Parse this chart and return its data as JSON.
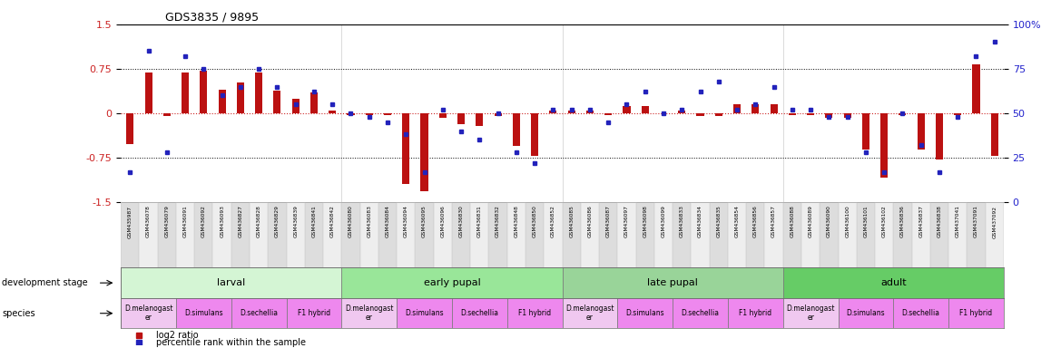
{
  "title": "GDS3835 / 9895",
  "samples": [
    "GSM435987",
    "GSM436078",
    "GSM436079",
    "GSM436091",
    "GSM436092",
    "GSM436093",
    "GSM436827",
    "GSM436828",
    "GSM436829",
    "GSM436839",
    "GSM436841",
    "GSM436842",
    "GSM436080",
    "GSM436083",
    "GSM436084",
    "GSM436094",
    "GSM436095",
    "GSM436096",
    "GSM436830",
    "GSM436831",
    "GSM436832",
    "GSM436848",
    "GSM436850",
    "GSM436852",
    "GSM436085",
    "GSM436086",
    "GSM436087",
    "GSM436097",
    "GSM436098",
    "GSM436099",
    "GSM436833",
    "GSM436834",
    "GSM436835",
    "GSM436854",
    "GSM436856",
    "GSM436857",
    "GSM436088",
    "GSM436089",
    "GSM436090",
    "GSM436100",
    "GSM436101",
    "GSM436102",
    "GSM436836",
    "GSM436837",
    "GSM436838",
    "GSM437041",
    "GSM437091",
    "GSM437092"
  ],
  "log2ratio": [
    -0.52,
    0.68,
    -0.05,
    0.68,
    0.72,
    0.4,
    0.52,
    0.68,
    0.38,
    0.25,
    0.35,
    0.05,
    -0.03,
    -0.03,
    -0.03,
    -1.2,
    -1.32,
    -0.08,
    -0.18,
    -0.22,
    -0.05,
    -0.55,
    -0.72,
    0.05,
    0.05,
    0.05,
    -0.03,
    0.12,
    0.12,
    0.0,
    0.05,
    -0.05,
    -0.05,
    0.15,
    0.15,
    0.15,
    -0.03,
    -0.03,
    -0.08,
    -0.08,
    -0.62,
    -1.08,
    -0.03,
    -0.62,
    -0.78,
    -0.03,
    0.82,
    -0.72
  ],
  "percentile": [
    17,
    85,
    28,
    82,
    75,
    60,
    65,
    75,
    65,
    55,
    62,
    55,
    50,
    48,
    45,
    38,
    17,
    52,
    40,
    35,
    50,
    28,
    22,
    52,
    52,
    52,
    45,
    55,
    62,
    50,
    52,
    62,
    68,
    52,
    55,
    65,
    52,
    52,
    48,
    48,
    28,
    17,
    50,
    32,
    17,
    48,
    82,
    90
  ],
  "stages": [
    {
      "label": "larval",
      "start": 0,
      "end": 12,
      "color": "#d4f5d4"
    },
    {
      "label": "early pupal",
      "start": 12,
      "end": 24,
      "color": "#99e699"
    },
    {
      "label": "late pupal",
      "start": 24,
      "end": 36,
      "color": "#99d499"
    },
    {
      "label": "adult",
      "start": 36,
      "end": 48,
      "color": "#66cc66"
    }
  ],
  "species_groups": [
    {
      "label": "D.melanogast\ner",
      "start": 0,
      "end": 3,
      "color": "#f0c8f0"
    },
    {
      "label": "D.simulans",
      "start": 3,
      "end": 6,
      "color": "#ee88ee"
    },
    {
      "label": "D.sechellia",
      "start": 6,
      "end": 9,
      "color": "#ee88ee"
    },
    {
      "label": "F1 hybrid",
      "start": 9,
      "end": 12,
      "color": "#ee88ee"
    },
    {
      "label": "D.melanogast\ner",
      "start": 12,
      "end": 15,
      "color": "#f0c8f0"
    },
    {
      "label": "D.simulans",
      "start": 15,
      "end": 18,
      "color": "#ee88ee"
    },
    {
      "label": "D.sechellia",
      "start": 18,
      "end": 21,
      "color": "#ee88ee"
    },
    {
      "label": "F1 hybrid",
      "start": 21,
      "end": 24,
      "color": "#ee88ee"
    },
    {
      "label": "D.melanogast\ner",
      "start": 24,
      "end": 27,
      "color": "#f0c8f0"
    },
    {
      "label": "D.simulans",
      "start": 27,
      "end": 30,
      "color": "#ee88ee"
    },
    {
      "label": "D.sechellia",
      "start": 30,
      "end": 33,
      "color": "#ee88ee"
    },
    {
      "label": "F1 hybrid",
      "start": 33,
      "end": 36,
      "color": "#ee88ee"
    },
    {
      "label": "D.melanogast\ner",
      "start": 36,
      "end": 39,
      "color": "#f0c8f0"
    },
    {
      "label": "D.simulans",
      "start": 39,
      "end": 42,
      "color": "#ee88ee"
    },
    {
      "label": "D.sechellia",
      "start": 42,
      "end": 45,
      "color": "#ee88ee"
    },
    {
      "label": "F1 hybrid",
      "start": 45,
      "end": 48,
      "color": "#ee88ee"
    }
  ],
  "ylim_left": [
    -1.5,
    1.5
  ],
  "ylim_right": [
    0,
    100
  ],
  "yticks_left": [
    -1.5,
    -0.75,
    0,
    0.75,
    1.5
  ],
  "yticks_right": [
    0,
    25,
    50,
    75,
    100
  ],
  "bar_color": "#bb1111",
  "point_color": "#2222bb",
  "zero_line_color": "#cc2222",
  "hline_color": "black",
  "bg_color": "white",
  "left_label_color": "#cc2222",
  "right_label_color": "#2222cc",
  "stage_sep_color": "#888888",
  "xlabels_bg_even": "#dddddd",
  "xlabels_bg_odd": "#eeeeee"
}
